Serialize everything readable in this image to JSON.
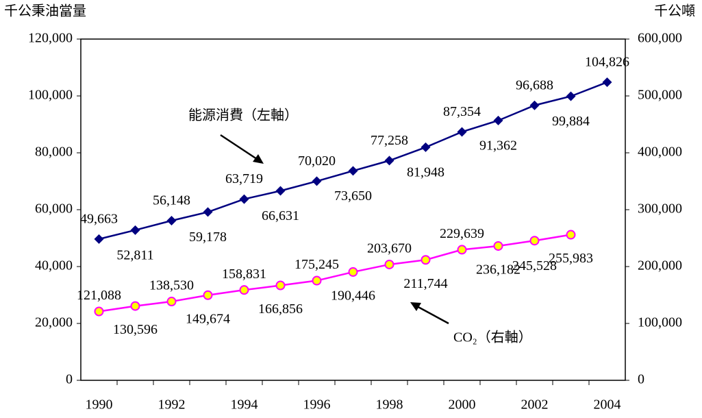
{
  "chart_data": {
    "type": "line",
    "y_axis_unit": "千公秉油當量",
    "y2_axis_unit": "千公噸",
    "categories": [
      "1990",
      null,
      "1992",
      null,
      "1994",
      null,
      "1996",
      null,
      "1998",
      null,
      "2000",
      null,
      "2002",
      null,
      "2004"
    ],
    "ylim": [
      0,
      120000
    ],
    "yticks": [
      0,
      {
        "value": 20000,
        "label": "20,000"
      },
      {
        "value": 40000,
        "label": "40,000"
      },
      {
        "value": 60000,
        "label": "60,000"
      },
      {
        "value": 80000,
        "label": "80,000"
      },
      {
        "value": 100000,
        "label": "100,000"
      },
      {
        "value": 120000,
        "label": "120,000"
      }
    ],
    "y2lim": [
      0,
      600000
    ],
    "y2ticks": [
      0,
      {
        "value": 100000,
        "label": "100,000"
      },
      {
        "value": 200000,
        "label": "200,000"
      },
      {
        "value": 300000,
        "label": "300,000"
      },
      {
        "value": 400000,
        "label": "400,000"
      },
      {
        "value": 500000,
        "label": "500,000"
      },
      {
        "value": 600000,
        "label": "600,000"
      }
    ],
    "grid": false,
    "series": [
      {
        "name": "能源消費（左軸）",
        "color": "#000080",
        "marker": "diamond",
        "axis": "y",
        "values": [
          49663,
          52811,
          56148,
          59178,
          63719,
          66631,
          70020,
          73650,
          77258,
          81948,
          87354,
          91362,
          96688,
          99884,
          104826
        ],
        "value_labels": [
          "49,663",
          "52,811",
          "56,148",
          "59,178",
          "63,719",
          "66,631",
          "70,020",
          "73,650",
          "77,258",
          "81,948",
          "87,354",
          "91,362",
          "96,688",
          "99,884",
          "104,826"
        ]
      },
      {
        "name": "CO₂（右軸）",
        "color": "#ff00ff",
        "marker": "circle",
        "marker_fill": "#ffff00",
        "axis": "y2",
        "values": [
          121088,
          130596,
          138530,
          149674,
          158831,
          166856,
          175245,
          190446,
          203670,
          211744,
          229639,
          236182,
          245528,
          255983,
          null
        ],
        "value_labels": [
          "121,088",
          "130,596",
          "138,530",
          "149,674",
          "158,831",
          "166,856",
          "175,245",
          "190,446",
          "203,670",
          "211,744",
          "229,639",
          "236,182",
          "245,528",
          "255,983",
          null
        ]
      }
    ]
  }
}
